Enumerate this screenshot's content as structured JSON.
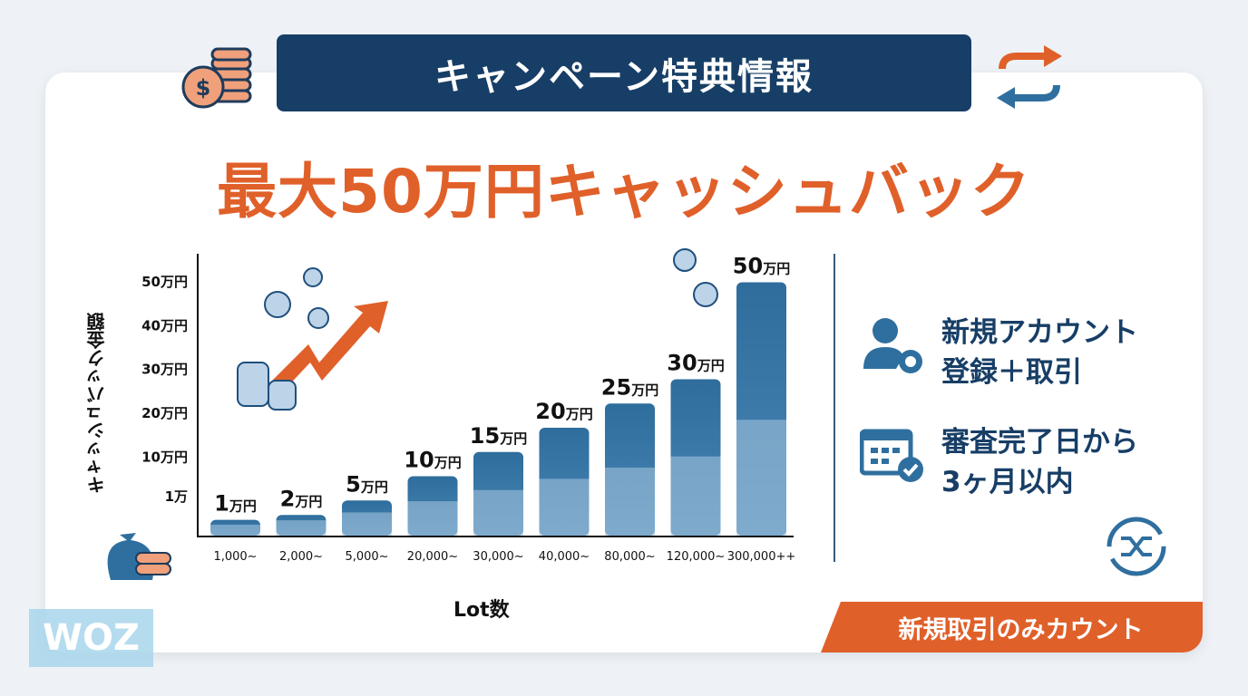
{
  "banner": {
    "title": "キャンペーン特典情報"
  },
  "headline": "最大50万円キャッシュバック",
  "conditions": [
    {
      "icon": "user-gear-icon",
      "line1": "新規アカウント",
      "line2": "登録＋取引"
    },
    {
      "icon": "calendar-check-icon",
      "line1": "審査完了日から",
      "line2": "3ヶ月以内"
    }
  ],
  "footer_tag": "新規取引のみカウント",
  "watermark": "WOZ",
  "colors": {
    "navy": "#173e66",
    "orange": "#e0602a",
    "bar": "#2f6f9f",
    "bar_light": "#8fb6d3"
  },
  "chart_data": {
    "type": "bar",
    "title": "",
    "xlabel": "Lot数",
    "ylabel": "キャッシュバック金額",
    "categories": [
      "1,000~",
      "2,000~",
      "5,000~",
      "20,000~",
      "30,000~",
      "40,000~",
      "80,000~",
      "120,000~",
      "300,000++"
    ],
    "values": [
      1,
      2,
      5,
      10,
      15,
      20,
      25,
      30,
      50
    ],
    "value_labels": [
      {
        "num": "1",
        "unit": "万円"
      },
      {
        "num": "2",
        "unit": "万円"
      },
      {
        "num": "5",
        "unit": "万円"
      },
      {
        "num": "10",
        "unit": "万円"
      },
      {
        "num": "15",
        "unit": "万円"
      },
      {
        "num": "20",
        "unit": "万円"
      },
      {
        "num": "25",
        "unit": "万円"
      },
      {
        "num": "30",
        "unit": "万円"
      },
      {
        "num": "50",
        "unit": "万円"
      }
    ],
    "y_ticks": [
      {
        "value": 1,
        "label": "1万"
      },
      {
        "value": 10,
        "label": "10万円"
      },
      {
        "value": 20,
        "label": "20万円"
      },
      {
        "value": 30,
        "label": "30万円"
      },
      {
        "value": 40,
        "label": "40万円"
      },
      {
        "value": 50,
        "label": "50万円"
      }
    ],
    "unit": "万円",
    "ylim": [
      0,
      50
    ],
    "grid": false
  }
}
